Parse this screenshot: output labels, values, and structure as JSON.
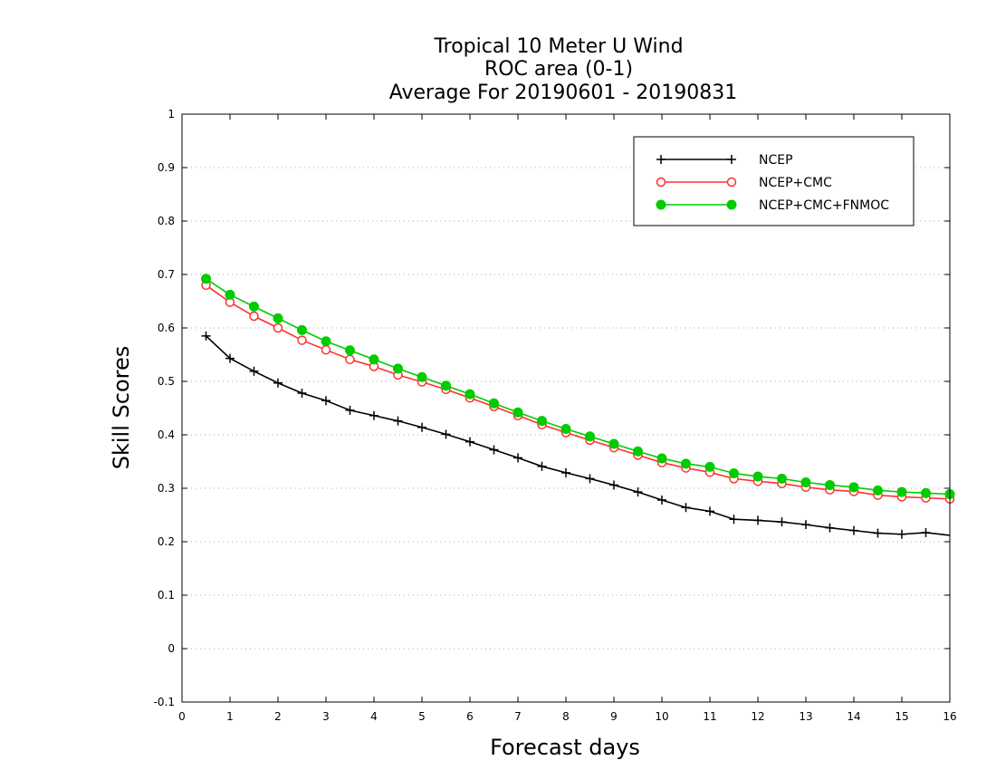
{
  "chart_data": {
    "type": "line",
    "title": [
      "Tropical 10 Meter U Wind",
      "ROC area (0-1)",
      "Average For 20190601 - 20190831"
    ],
    "xlabel": "Forecast days",
    "ylabel": "Skill Scores",
    "xlim": [
      0,
      16
    ],
    "ylim": [
      -0.1,
      1
    ],
    "xticks": [
      0,
      1,
      2,
      3,
      4,
      5,
      6,
      7,
      8,
      9,
      10,
      11,
      12,
      13,
      14,
      15,
      16
    ],
    "yticks": [
      -0.1,
      0,
      0.1,
      0.2,
      0.3,
      0.4,
      0.5,
      0.6,
      0.7,
      0.8,
      0.9,
      1
    ],
    "ytick_labels": [
      "-0.1",
      "0",
      "0.1",
      "0.2",
      "0.3",
      "0.4",
      "0.5",
      "0.6",
      "0.7",
      "0.8",
      "0.9",
      "1"
    ],
    "grid": "horizontal dotted",
    "legend_position": "top-right",
    "x": [
      0.5,
      1,
      1.5,
      2,
      2.5,
      3,
      3.5,
      4,
      4.5,
      5,
      5.5,
      6,
      6.5,
      7,
      7.5,
      8,
      8.5,
      9,
      9.5,
      10,
      10.5,
      11,
      11.5,
      12,
      12.5,
      13,
      13.5,
      14,
      14.5,
      15,
      15.5,
      16
    ],
    "series": [
      {
        "name": "NCEP",
        "color": "#000000",
        "marker": "plus",
        "values": [
          0.585,
          0.543,
          0.519,
          0.497,
          0.478,
          0.464,
          0.446,
          0.436,
          0.426,
          0.414,
          0.401,
          0.387,
          0.372,
          0.357,
          0.341,
          0.329,
          0.318,
          0.306,
          0.293,
          0.278,
          0.264,
          0.257,
          0.242,
          0.24,
          0.237,
          0.232,
          0.226,
          0.221,
          0.216,
          0.214,
          0.217,
          0.212
        ]
      },
      {
        "name": "NCEP+CMC",
        "color": "#ff3030",
        "marker": "open-circle",
        "values": [
          0.68,
          0.648,
          0.622,
          0.6,
          0.577,
          0.559,
          0.541,
          0.528,
          0.512,
          0.499,
          0.485,
          0.469,
          0.453,
          0.436,
          0.419,
          0.404,
          0.39,
          0.376,
          0.362,
          0.348,
          0.338,
          0.33,
          0.318,
          0.313,
          0.309,
          0.302,
          0.297,
          0.294,
          0.287,
          0.284,
          0.282,
          0.28
        ]
      },
      {
        "name": "NCEP+CMC+FNMOC",
        "color": "#00cc00",
        "marker": "filled-circle",
        "values": [
          0.692,
          0.662,
          0.64,
          0.618,
          0.596,
          0.575,
          0.558,
          0.541,
          0.524,
          0.508,
          0.492,
          0.476,
          0.459,
          0.442,
          0.426,
          0.411,
          0.397,
          0.383,
          0.369,
          0.356,
          0.346,
          0.34,
          0.328,
          0.322,
          0.318,
          0.311,
          0.306,
          0.302,
          0.296,
          0.293,
          0.291,
          0.289
        ]
      }
    ]
  }
}
